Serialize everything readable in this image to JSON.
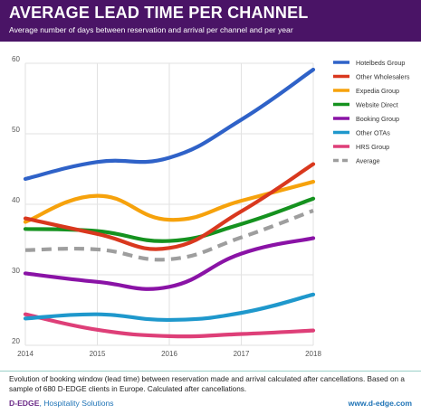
{
  "header": {
    "title": "AVERAGE LEAD TIME PER CHANNEL",
    "subtitle": "Average number of days between reservation and arrival per channel and per year",
    "background": "#4a1466"
  },
  "footer": {
    "caption": "Evolution of booking window (lead time) between reservation made and arrival calculated after cancellations. Based on a sample of 680 D-EDGE clients in Europe. Calculated after cancellations.",
    "brand_name": "D-EDGE",
    "brand_tagline": ", Hospitality Solutions",
    "url": "www.d-edge.com"
  },
  "chart_data": {
    "type": "line",
    "x": [
      2014,
      2015,
      2016,
      2017,
      2018
    ],
    "xlim": [
      2014,
      2018
    ],
    "ylim": [
      20,
      60
    ],
    "yticks": [
      20,
      30,
      40,
      50,
      60
    ],
    "grid": true,
    "legend_position": "right",
    "series": [
      {
        "name": "Hotelbeds Group",
        "color": "#2f62c8",
        "dashed": false,
        "values": [
          43.6,
          46.0,
          46.6,
          52.0,
          59.1
        ]
      },
      {
        "name": "Other Wholesalers",
        "color": "#d9381e",
        "dashed": false,
        "values": [
          38.0,
          35.8,
          33.8,
          39.0,
          45.7
        ]
      },
      {
        "name": "Expedia Group",
        "color": "#f6a20c",
        "dashed": false,
        "values": [
          37.5,
          41.2,
          37.8,
          40.5,
          43.2
        ]
      },
      {
        "name": "Website Direct",
        "color": "#15921f",
        "dashed": false,
        "values": [
          36.5,
          36.2,
          34.8,
          37.2,
          40.8
        ]
      },
      {
        "name": "Booking Group",
        "color": "#8a13a6",
        "dashed": false,
        "values": [
          30.2,
          29.0,
          28.3,
          33.0,
          35.2
        ]
      },
      {
        "name": "Other OTAs",
        "color": "#1f98cc",
        "dashed": false,
        "values": [
          23.8,
          24.4,
          23.6,
          24.6,
          27.2
        ]
      },
      {
        "name": "HRS Group",
        "color": "#de3f78",
        "dashed": false,
        "values": [
          24.4,
          22.2,
          21.3,
          21.6,
          22.1
        ]
      },
      {
        "name": "Average",
        "color": "#9e9e9e",
        "dashed": true,
        "values": [
          33.5,
          33.6,
          32.2,
          35.3,
          39.1
        ]
      }
    ]
  }
}
